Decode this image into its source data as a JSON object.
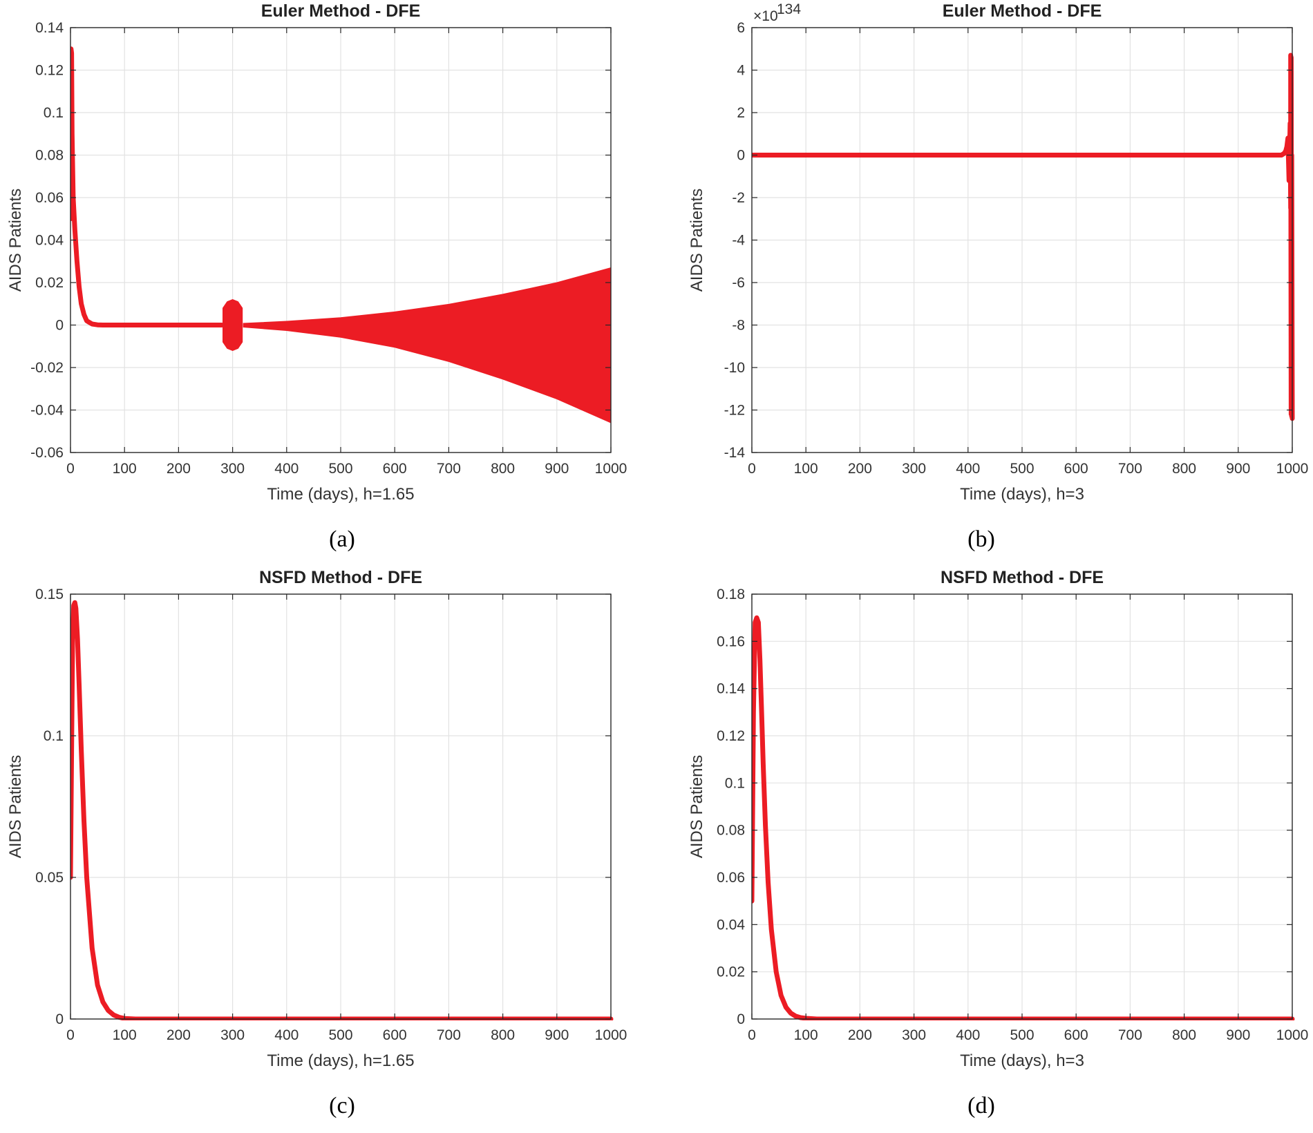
{
  "colors": {
    "series": "#ec1c24",
    "grid": "#e2e2e2",
    "axis": "#262626"
  },
  "chart_data": [
    {
      "id": "a",
      "type": "line",
      "caption": "(a)",
      "title": "Euler Method - DFE",
      "xlabel": "Time (days), h=1.65",
      "ylabel": "AIDS Patients",
      "xlim": [
        0,
        1000
      ],
      "ylim": [
        -0.06,
        0.14
      ],
      "xticks": [
        0,
        100,
        200,
        300,
        400,
        500,
        600,
        700,
        800,
        900,
        1000
      ],
      "yticks": [
        -0.06,
        -0.04,
        -0.02,
        0,
        0.02,
        0.04,
        0.06,
        0.08,
        0.1,
        0.12,
        0.14
      ],
      "ytick_labels": [
        "-0.06",
        "-0.04",
        "-0.02",
        "0",
        "0.02",
        "0.04",
        "0.06",
        "0.08",
        "0.1",
        "0.12",
        "0.14"
      ],
      "exponent_label": "",
      "series": [
        {
          "name": "AIDS Patients",
          "kind": "line",
          "x": [
            0,
            1,
            2,
            3,
            5,
            8,
            12,
            16,
            20,
            25,
            30,
            40,
            50,
            60,
            100,
            200,
            280
          ],
          "y": [
            0.05,
            0.13,
            0.128,
            0.09,
            0.06,
            0.045,
            0.03,
            0.018,
            0.01,
            0.005,
            0.002,
            0.0005,
            0.0001,
            0,
            0,
            0,
            0
          ]
        },
        {
          "name": "burst",
          "kind": "band",
          "x": [
            282,
            290,
            300,
            310,
            318
          ],
          "upper": [
            0.008,
            0.011,
            0.012,
            0.011,
            0.008
          ],
          "lower": [
            -0.008,
            -0.011,
            -0.012,
            -0.011,
            -0.008
          ]
        },
        {
          "name": "growing oscillation",
          "kind": "band",
          "x": [
            320,
            400,
            500,
            600,
            700,
            800,
            900,
            1000
          ],
          "upper": [
            0.0008,
            0.0018,
            0.0035,
            0.0062,
            0.0098,
            0.0145,
            0.02,
            0.027
          ],
          "lower": [
            -0.001,
            -0.0026,
            -0.0058,
            -0.0105,
            -0.0172,
            -0.0255,
            -0.0348,
            -0.046
          ]
        }
      ]
    },
    {
      "id": "b",
      "type": "line",
      "caption": "(b)",
      "title": "Euler Method - DFE",
      "xlabel": "Time (days), h=3",
      "ylabel": "AIDS Patients",
      "xlim": [
        0,
        1000
      ],
      "ylim": [
        -14,
        6
      ],
      "xticks": [
        0,
        100,
        200,
        300,
        400,
        500,
        600,
        700,
        800,
        900,
        1000
      ],
      "yticks": [
        -14,
        -12,
        -10,
        -8,
        -6,
        -4,
        -2,
        0,
        2,
        4,
        6
      ],
      "ytick_labels": [
        "-14",
        "-12",
        "-10",
        "-8",
        "-6",
        "-4",
        "-2",
        "0",
        "2",
        "4",
        "6"
      ],
      "exponent_label": "×10",
      "exponent_power": "134",
      "series": [
        {
          "name": "AIDS Patients (×10^134)",
          "kind": "line",
          "x": [
            0,
            500,
            980,
            985,
            988,
            990,
            992,
            994,
            996,
            997,
            997,
            998,
            998,
            999,
            999,
            1000
          ],
          "y": [
            0,
            0,
            0,
            0.08,
            0.2,
            0.4,
            0.8,
            -1.2,
            1.5,
            -2.5,
            4.7,
            -12.2,
            4.6,
            -12.3,
            0,
            -12.4
          ]
        }
      ]
    },
    {
      "id": "c",
      "type": "line",
      "caption": "(c)",
      "title": "NSFD Method - DFE",
      "xlabel": "Time (days), h=1.65",
      "ylabel": "AIDS Patients",
      "xlim": [
        0,
        1000
      ],
      "ylim": [
        0,
        0.15
      ],
      "xticks": [
        0,
        100,
        200,
        300,
        400,
        500,
        600,
        700,
        800,
        900,
        1000
      ],
      "yticks": [
        0,
        0.05,
        0.1,
        0.15
      ],
      "ytick_labels": [
        "0",
        "0.05",
        "0.1",
        "0.15"
      ],
      "exponent_label": "",
      "series": [
        {
          "name": "AIDS Patients",
          "kind": "line",
          "x": [
            0,
            2,
            4,
            6,
            8,
            10,
            13,
            16,
            20,
            25,
            30,
            40,
            50,
            60,
            70,
            80,
            90,
            100,
            120,
            150,
            1000
          ],
          "y": [
            0.05,
            0.095,
            0.135,
            0.146,
            0.147,
            0.145,
            0.134,
            0.118,
            0.095,
            0.07,
            0.05,
            0.025,
            0.012,
            0.006,
            0.003,
            0.0014,
            0.0006,
            0.0002,
            0,
            0,
            0
          ]
        }
      ]
    },
    {
      "id": "d",
      "type": "line",
      "caption": "(d)",
      "title": "NSFD Method - DFE",
      "xlabel": "Time (days), h=3",
      "ylabel": "AIDS Patients",
      "xlim": [
        0,
        1000
      ],
      "ylim": [
        0,
        0.18
      ],
      "xticks": [
        0,
        100,
        200,
        300,
        400,
        500,
        600,
        700,
        800,
        900,
        1000
      ],
      "yticks": [
        0,
        0.02,
        0.04,
        0.06,
        0.08,
        0.1,
        0.12,
        0.14,
        0.16,
        0.18
      ],
      "ytick_labels": [
        "0",
        "0.02",
        "0.04",
        "0.06",
        "0.08",
        "0.1",
        "0.12",
        "0.14",
        "0.16",
        "0.18"
      ],
      "exponent_label": "",
      "series": [
        {
          "name": "AIDS Patients",
          "kind": "line",
          "x": [
            0,
            3,
            6,
            9,
            12,
            15,
            18,
            21,
            25,
            30,
            36,
            45,
            54,
            63,
            72,
            81,
            90,
            100,
            120,
            150,
            1000
          ],
          "y": [
            0.05,
            0.13,
            0.168,
            0.17,
            0.168,
            0.152,
            0.13,
            0.108,
            0.082,
            0.058,
            0.038,
            0.02,
            0.01,
            0.005,
            0.0025,
            0.0012,
            0.0006,
            0.0003,
            0,
            0,
            0
          ]
        }
      ]
    }
  ]
}
